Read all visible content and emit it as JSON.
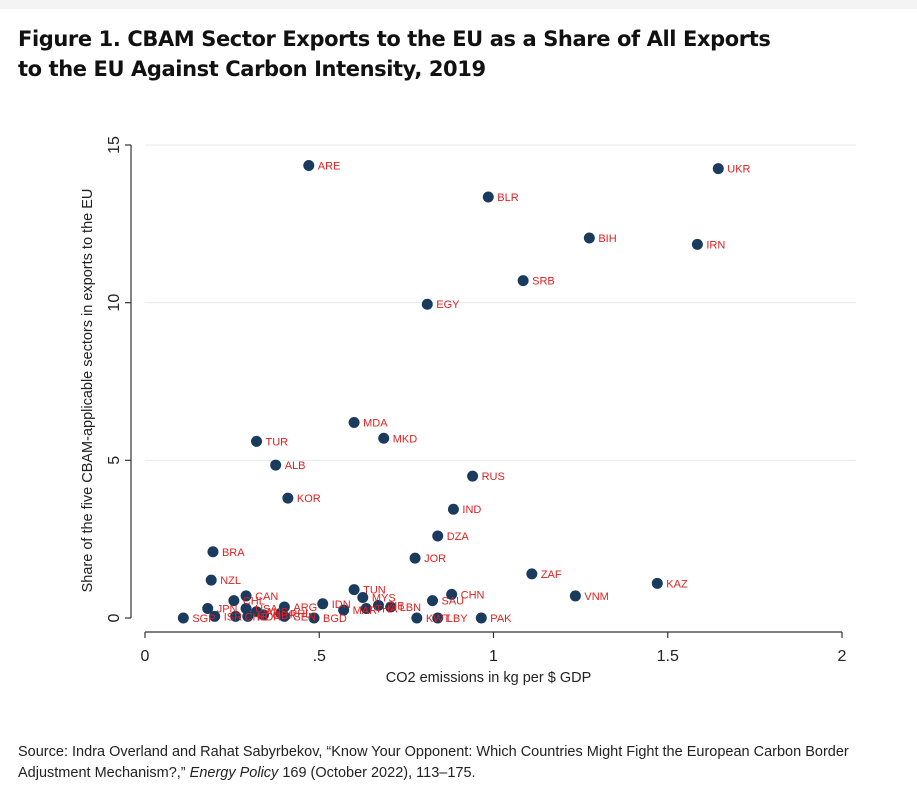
{
  "figure": {
    "title_line1": "Figure 1. CBAM Sector Exports to the EU as a Share of All Exports",
    "title_line2": "to the EU Against Carbon Intensity, 2019"
  },
  "source": {
    "prefix": "Source: Indra Overland and Rahat Sabyrbekov, “Know Your Opponent: Which Countries Might Fight the European Carbon Border Adjustment Mechanism?,” ",
    "journal": "Energy Policy",
    "suffix": " 169 (October 2022), 113–175."
  },
  "colors": {
    "marker": "#1b3b5e",
    "label": "#e02020",
    "grid": "#e3ebef",
    "axis": "#333333"
  },
  "chart_data": {
    "type": "scatter",
    "xlabel": "CO2 emissions in kg per $ GDP",
    "ylabel": "Share of the five CBAM-applicable sectors in exports to the EU",
    "xlim": [
      0,
      2
    ],
    "ylim": [
      0,
      15
    ],
    "xticks": [
      {
        "value": 0,
        "label": "0"
      },
      {
        "value": 0.5,
        "label": ".5"
      },
      {
        "value": 1,
        "label": "1"
      },
      {
        "value": 1.5,
        "label": "1.5"
      },
      {
        "value": 2,
        "label": "2"
      }
    ],
    "yticks": [
      {
        "value": 0,
        "label": "0"
      },
      {
        "value": 5,
        "label": "5"
      },
      {
        "value": 10,
        "label": "10"
      },
      {
        "value": 15,
        "label": "15"
      }
    ],
    "grid": "horizontal",
    "points": [
      {
        "label": "UKR",
        "x": 1.645,
        "y": 14.25
      },
      {
        "label": "ARE",
        "x": 0.47,
        "y": 14.35
      },
      {
        "label": "BLR",
        "x": 0.985,
        "y": 13.35
      },
      {
        "label": "BIH",
        "x": 1.275,
        "y": 12.05
      },
      {
        "label": "IRN",
        "x": 1.585,
        "y": 11.85
      },
      {
        "label": "SRB",
        "x": 1.085,
        "y": 10.7
      },
      {
        "label": "EGY",
        "x": 0.81,
        "y": 9.95
      },
      {
        "label": "MDA",
        "x": 0.6,
        "y": 6.2
      },
      {
        "label": "MKD",
        "x": 0.685,
        "y": 5.7
      },
      {
        "label": "TUR",
        "x": 0.32,
        "y": 5.6
      },
      {
        "label": "ALB",
        "x": 0.375,
        "y": 4.85
      },
      {
        "label": "RUS",
        "x": 0.94,
        "y": 4.5
      },
      {
        "label": "KOR",
        "x": 0.41,
        "y": 3.8
      },
      {
        "label": "IND",
        "x": 0.885,
        "y": 3.45
      },
      {
        "label": "DZA",
        "x": 0.84,
        "y": 2.6
      },
      {
        "label": "BRA",
        "x": 0.195,
        "y": 2.1
      },
      {
        "label": "JOR",
        "x": 0.775,
        "y": 1.9
      },
      {
        "label": "ZAF",
        "x": 1.11,
        "y": 1.4
      },
      {
        "label": "NZL",
        "x": 0.19,
        "y": 1.2
      },
      {
        "label": "KAZ",
        "x": 1.47,
        "y": 1.1
      },
      {
        "label": "TUN",
        "x": 0.6,
        "y": 0.9
      },
      {
        "label": "CHN",
        "x": 0.88,
        "y": 0.75
      },
      {
        "label": "CAN",
        "x": 0.29,
        "y": 0.7
      },
      {
        "label": "VNM",
        "x": 1.235,
        "y": 0.7
      },
      {
        "label": "MYS",
        "x": 0.625,
        "y": 0.65
      },
      {
        "label": "SAU",
        "x": 0.825,
        "y": 0.55
      },
      {
        "label": "CHL",
        "x": 0.255,
        "y": 0.55
      },
      {
        "label": "IDN",
        "x": 0.51,
        "y": 0.45
      },
      {
        "label": "ARG",
        "x": 0.4,
        "y": 0.35
      },
      {
        "label": "ZIB",
        "x": 0.67,
        "y": 0.4
      },
      {
        "label": "LBN",
        "x": 0.705,
        "y": 0.35
      },
      {
        "label": "JPN",
        "x": 0.18,
        "y": 0.3
      },
      {
        "label": "USA",
        "x": 0.29,
        "y": 0.3
      },
      {
        "label": "AUS",
        "x": 0.32,
        "y": 0.2
      },
      {
        "label": "MAR",
        "x": 0.57,
        "y": 0.25
      },
      {
        "label": "THA",
        "x": 0.635,
        "y": 0.3
      },
      {
        "label": "ISR",
        "x": 0.2,
        "y": 0.05
      },
      {
        "label": "CHE",
        "x": 0.26,
        "y": 0.05
      },
      {
        "label": "NOR",
        "x": 0.295,
        "y": 0.05
      },
      {
        "label": "GBR",
        "x": 0.34,
        "y": 0.1
      },
      {
        "label": "PHL",
        "x": 0.39,
        "y": 0.15
      },
      {
        "label": "SEN",
        "x": 0.4,
        "y": 0.05
      },
      {
        "label": "BGD",
        "x": 0.485,
        "y": 0.0
      },
      {
        "label": "SGP",
        "x": 0.11,
        "y": 0.0
      },
      {
        "label": "KWT",
        "x": 0.78,
        "y": 0.0
      },
      {
        "label": "LBY",
        "x": 0.84,
        "y": 0.0
      },
      {
        "label": "PAK",
        "x": 0.965,
        "y": 0.0
      }
    ]
  }
}
